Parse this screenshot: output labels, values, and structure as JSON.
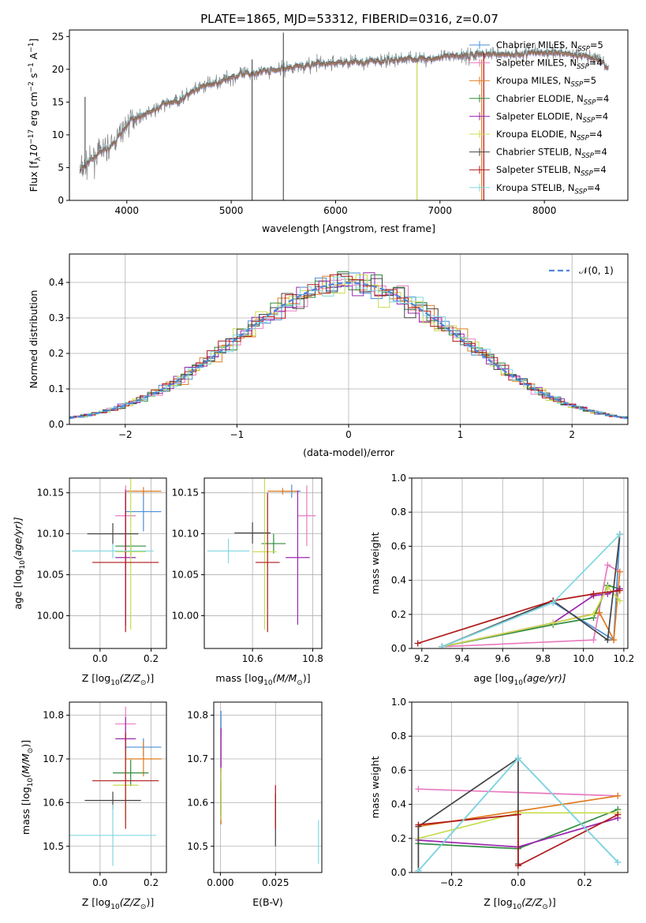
{
  "series_styles": [
    {
      "name": "Chabrier MILES",
      "suffix": "=5",
      "color": "#4a8fd8"
    },
    {
      "name": "Salpeter MILES",
      "suffix": "=4",
      "color": "#e87ac0"
    },
    {
      "name": "Kroupa MILES",
      "suffix": "=5",
      "color": "#e07a1f"
    },
    {
      "name": "Chabrier ELODIE",
      "suffix": "=4",
      "color": "#2e8b3e"
    },
    {
      "name": "Salpeter ELODIE",
      "suffix": "=4",
      "color": "#9c27b0"
    },
    {
      "name": "Kroupa ELODIE",
      "suffix": "=4",
      "color": "#c8dc50"
    },
    {
      "name": "Chabrier STELIB",
      "suffix": "=4",
      "color": "#444444"
    },
    {
      "name": "Salpeter STELIB",
      "suffix": "=4",
      "color": "#b01818"
    },
    {
      "name": "Kroupa STELIB",
      "suffix": "=4",
      "color": "#80d8e0"
    }
  ],
  "chart_data": [
    {
      "type": "line",
      "title": "PLATE=1865, MJD=53312, FIBERID=0316, z=0.07",
      "xlabel": "wavelength [Angstrom, rest frame]",
      "ylabel": "Flux [f",
      "ylabel_sub": "λ",
      "ylabel_rest": "10",
      "ylabel_exp": "−17",
      "ylabel_units": " erg cm",
      "ylabel_units_exp": "−2",
      "ylabel_units2": " s",
      "ylabel_units2_exp": "−1",
      "ylabel_units3": " A",
      "ylabel_units3_exp": "−1",
      "ylabel_end": "]",
      "xlim": [
        3450,
        8800
      ],
      "ylim": [
        0,
        26
      ],
      "xticks": [
        4000,
        5000,
        6000,
        7000,
        8000
      ],
      "yticks": [
        0,
        5,
        10,
        15,
        20,
        25
      ],
      "legend_position": "upper-right",
      "legend_label_prefix": "N",
      "legend_label_sub": "SSP",
      "continuum": [
        [
          3550,
          4.5
        ],
        [
          3650,
          6.0
        ],
        [
          3750,
          7.5
        ],
        [
          3850,
          8.2
        ],
        [
          3950,
          10.5
        ],
        [
          4050,
          12.5
        ],
        [
          4150,
          13.0
        ],
        [
          4250,
          13.6
        ],
        [
          4350,
          14.6
        ],
        [
          4500,
          15.3
        ],
        [
          4700,
          17.2
        ],
        [
          4900,
          18.3
        ],
        [
          5100,
          19.2
        ],
        [
          5300,
          19.7
        ],
        [
          5500,
          20.1
        ],
        [
          5700,
          20.6
        ],
        [
          5900,
          20.9
        ],
        [
          6100,
          21.1
        ],
        [
          6300,
          21.2
        ],
        [
          6500,
          21.3
        ],
        [
          6700,
          21.6
        ],
        [
          6900,
          21.6
        ],
        [
          7100,
          21.9
        ],
        [
          7300,
          22.2
        ],
        [
          7500,
          22.4
        ],
        [
          7700,
          22.3
        ],
        [
          7900,
          22.6
        ],
        [
          8100,
          22.6
        ],
        [
          8300,
          22.3
        ],
        [
          8500,
          21.7
        ],
        [
          8620,
          20.0
        ]
      ],
      "spikes": [
        {
          "x": 5200,
          "y0": 0,
          "y1": 21.5,
          "color": "#555555"
        },
        {
          "x": 5500,
          "y0": 0,
          "y1": 25.6,
          "color": "#555555"
        },
        {
          "x": 6780,
          "y0": 0,
          "y1": 21.0,
          "color": "#c8dc50"
        },
        {
          "x": 7420,
          "y0": 0,
          "y1": 22.5,
          "color": "#b01818"
        },
        {
          "x": 7400,
          "y0": 0,
          "y1": 21.5,
          "color": "#e07a1f"
        },
        {
          "x": 3600,
          "y0": 5,
          "y1": 15.8,
          "color": "#555555"
        }
      ]
    },
    {
      "type": "histogram",
      "xlabel": "(data-model)/error",
      "ylabel": "Normed distribution",
      "xlim": [
        -2.5,
        2.5
      ],
      "ylim": [
        0,
        0.48
      ],
      "xticks": [
        -2,
        -1,
        0,
        1,
        2
      ],
      "yticks": [
        0.0,
        0.1,
        0.2,
        0.3,
        0.4
      ],
      "grid": true,
      "legend_label": "𝒩(0, 1)",
      "legend_position": "top-right",
      "reference_curve": "normal(0,1)",
      "bin_width": 0.1,
      "bin_start": -2.5
    },
    {
      "type": "scatter",
      "xlabel": "Z [log",
      "xlabel_sub": "10",
      "xlabel_rest": "(Z/Z",
      "xlabel_rest_sub": "⊙",
      "xlabel_end": ")]",
      "ylabel": "age  [log",
      "ylabel_sub": "10",
      "ylabel_rest": "(age/yr)]",
      "xlim": [
        -0.12,
        0.26
      ],
      "ylim": [
        9.96,
        10.168
      ],
      "xticks": [
        0.0,
        0.2
      ],
      "yticks": [
        10.0,
        10.05,
        10.1,
        10.15
      ],
      "points": [
        {
          "x": 0.17,
          "xerr": 0.07,
          "y": 10.127,
          "yerr": 0.024
        },
        {
          "x": 0.1,
          "xerr": 0.04,
          "y": 10.122,
          "yerr": 0.037
        },
        {
          "x": 0.17,
          "xerr": 0.07,
          "y": 10.152,
          "yerr": 0.005
        },
        {
          "x": 0.12,
          "xerr": 0.06,
          "y": 10.085,
          "yerr": 0.012
        },
        {
          "x": 0.1,
          "xerr": 0.04,
          "y": 10.071,
          "yerr": 0.083
        },
        {
          "x": 0.12,
          "xerr": 0.06,
          "y": 10.078,
          "yerr": 0.095
        },
        {
          "x": 0.05,
          "xerr": 0.1,
          "y": 10.1,
          "yerr": 0.013
        },
        {
          "x": 0.1,
          "xerr": 0.13,
          "y": 10.065,
          "yerr": 0.085
        },
        {
          "x": 0.05,
          "xerr": 0.16,
          "y": 10.079,
          "yerr": 0.009
        }
      ]
    },
    {
      "type": "scatter",
      "xlabel": "mass [log",
      "xlabel_sub": "10",
      "xlabel_rest": "(M/M",
      "xlabel_rest_sub": "⊙",
      "xlabel_end": ")]",
      "xlim": [
        10.44,
        10.83
      ],
      "ylim": [
        9.96,
        10.168
      ],
      "xticks": [
        10.6,
        10.8
      ],
      "yticks": [
        10.0,
        10.05,
        10.1,
        10.15
      ],
      "points": [
        {
          "x": 10.73,
          "xerr": 0.03,
          "y": 10.152,
          "yerr": 0.008
        },
        {
          "x": 10.78,
          "xerr": 0.03,
          "y": 10.122,
          "yerr": 0.037
        },
        {
          "x": 10.7,
          "xerr": 0.05,
          "y": 10.152,
          "yerr": 0.004
        },
        {
          "x": 10.67,
          "xerr": 0.04,
          "y": 10.088,
          "yerr": 0.012
        },
        {
          "x": 10.75,
          "xerr": 0.04,
          "y": 10.071,
          "yerr": 0.082
        },
        {
          "x": 10.64,
          "xerr": 0.04,
          "y": 10.078,
          "yerr": 0.095
        },
        {
          "x": 10.6,
          "xerr": 0.06,
          "y": 10.101,
          "yerr": 0.013
        },
        {
          "x": 10.65,
          "xerr": 0.04,
          "y": 10.065,
          "yerr": 0.085
        },
        {
          "x": 10.52,
          "xerr": 0.07,
          "y": 10.079,
          "yerr": 0.015
        }
      ]
    },
    {
      "type": "line",
      "xlabel": "age  [log",
      "xlabel_sub": "10",
      "xlabel_rest": "(age/yr)]",
      "ylabel": "mass weight",
      "xlim": [
        9.15,
        10.22
      ],
      "ylim": [
        0.0,
        1.0
      ],
      "xticks": [
        9.2,
        9.4,
        9.6,
        9.8,
        10.0,
        10.2
      ],
      "yticks": [
        0.0,
        0.2,
        0.4,
        0.6,
        0.8,
        1.0
      ],
      "grid": true,
      "series": [
        {
          "x": [
            9.3,
            9.85,
            10.15,
            10.18
          ],
          "y": [
            0.01,
            0.27,
            0.05,
            0.67
          ]
        },
        {
          "x": [
            9.3,
            10.05,
            10.12,
            10.18
          ],
          "y": [
            0.01,
            0.05,
            0.49,
            0.45
          ]
        },
        {
          "x": [
            9.3,
            9.85,
            10.08,
            10.15,
            10.18
          ],
          "y": [
            0.01,
            0.15,
            0.21,
            0.05,
            0.45
          ]
        },
        {
          "x": [
            9.3,
            9.85,
            10.05,
            10.12,
            10.18
          ],
          "y": [
            0.01,
            0.14,
            0.18,
            0.37,
            0.35
          ]
        },
        {
          "x": [
            9.3,
            9.85,
            10.05,
            10.12,
            10.18
          ],
          "y": [
            0.01,
            0.15,
            0.31,
            0.32,
            0.35
          ]
        },
        {
          "x": [
            9.3,
            9.85,
            10.05,
            10.12,
            10.18
          ],
          "y": [
            0.01,
            0.15,
            0.2,
            0.36,
            0.28
          ]
        },
        {
          "x": [
            9.3,
            9.85,
            10.12,
            10.18
          ],
          "y": [
            0.01,
            0.28,
            0.05,
            0.67
          ]
        },
        {
          "x": [
            9.18,
            9.85,
            10.05,
            10.18
          ],
          "y": [
            0.03,
            0.28,
            0.32,
            0.34
          ]
        },
        {
          "x": [
            9.3,
            9.85,
            10.18
          ],
          "y": [
            0.01,
            0.27,
            0.67
          ]
        }
      ]
    },
    {
      "type": "scatter",
      "xlabel": "Z [log",
      "xlabel_sub": "10",
      "xlabel_rest": "(Z/Z",
      "xlabel_rest_sub": "⊙",
      "xlabel_end": ")]",
      "ylabel": "mass [log",
      "ylabel_sub": "10",
      "ylabel_rest": "(M/M",
      "ylabel_rest_sub": "⊙",
      "ylabel_end": ")]",
      "xlim": [
        -0.12,
        0.26
      ],
      "ylim": [
        10.44,
        10.83
      ],
      "xticks": [
        0.0,
        0.2
      ],
      "yticks": [
        10.5,
        10.6,
        10.7,
        10.8
      ],
      "points": [
        {
          "x": 0.17,
          "xerr": 0.07,
          "y": 10.727,
          "yerr": 0.02
        },
        {
          "x": 0.1,
          "xerr": 0.04,
          "y": 10.78,
          "yerr": 0.04
        },
        {
          "x": 0.17,
          "xerr": 0.07,
          "y": 10.7,
          "yerr": 0.04
        },
        {
          "x": 0.12,
          "xerr": 0.07,
          "y": 10.668,
          "yerr": 0.03
        },
        {
          "x": 0.1,
          "xerr": 0.04,
          "y": 10.746,
          "yerr": 0.05
        },
        {
          "x": 0.1,
          "xerr": 0.05,
          "y": 10.64,
          "yerr": 0.08
        },
        {
          "x": 0.05,
          "xerr": 0.11,
          "y": 10.605,
          "yerr": 0.02
        },
        {
          "x": 0.1,
          "xerr": 0.13,
          "y": 10.65,
          "yerr": 0.11
        },
        {
          "x": 0.05,
          "xerr": 0.17,
          "y": 10.525,
          "yerr": 0.07
        }
      ]
    },
    {
      "type": "scatter",
      "xlabel": "E(B-V)",
      "xlim": [
        -0.003,
        0.046
      ],
      "ylim": [
        10.44,
        10.83
      ],
      "xticks": [
        0.0,
        0.025
      ],
      "yticks": [
        10.5,
        10.6,
        10.7,
        10.8
      ],
      "points": [
        {
          "x": 0.0003,
          "xerr": 0,
          "y": 10.78,
          "yerr": 0.03
        },
        {
          "x": 0.0003,
          "xerr": 0,
          "y": 10.71,
          "yerr": 0.06
        },
        {
          "x": 0.0003,
          "xerr": 0,
          "y": 10.6,
          "yerr": 0.05
        },
        {
          "x": 0.0003,
          "xerr": 0,
          "y": 10.61,
          "yerr": 0.04
        },
        {
          "x": 0.0003,
          "xerr": 0,
          "y": 10.72,
          "yerr": 0.05
        },
        {
          "x": 0.0003,
          "xerr": 0,
          "y": 10.62,
          "yerr": 0.06
        },
        {
          "x": 0.025,
          "xerr": 0,
          "y": 10.56,
          "yerr": 0.06
        },
        {
          "x": 0.025,
          "xerr": 0,
          "y": 10.59,
          "yerr": 0.05
        },
        {
          "x": 0.0445,
          "xerr": 0,
          "y": 10.51,
          "yerr": 0.05
        }
      ]
    },
    {
      "type": "line",
      "xlabel": "Z [log",
      "xlabel_sub": "10",
      "xlabel_rest": "(Z/Z",
      "xlabel_rest_sub": "⊙",
      "xlabel_end": ")]",
      "ylabel": "mass weight",
      "xlim": [
        -0.32,
        0.33
      ],
      "ylim": [
        0.0,
        1.0
      ],
      "xticks": [
        -0.2,
        0.0,
        0.2
      ],
      "yticks": [
        0.0,
        0.2,
        0.4,
        0.6,
        0.8,
        1.0
      ],
      "grid": true,
      "series": [
        {
          "x": [
            -0.3,
            0.0,
            0.3
          ],
          "y": [
            0.01,
            0.67,
            0.06
          ]
        },
        {
          "x": [
            -0.3,
            0.3
          ],
          "y": [
            0.49,
            0.45
          ]
        },
        {
          "x": [
            -0.3,
            0.0,
            0.3
          ],
          "y": [
            0.27,
            0.36,
            0.45
          ]
        },
        {
          "x": [
            -0.3,
            0.0,
            0.3
          ],
          "y": [
            0.17,
            0.14,
            0.37
          ]
        },
        {
          "x": [
            -0.3,
            0.0,
            0.3
          ],
          "y": [
            0.19,
            0.15,
            0.32
          ]
        },
        {
          "x": [
            -0.3,
            0.0,
            0.3
          ],
          "y": [
            0.2,
            0.35,
            0.35
          ]
        },
        {
          "x": [
            -0.3,
            -0.3,
            0.0,
            0.0
          ],
          "y": [
            0.01,
            0.27,
            0.67,
            0.05
          ]
        },
        {
          "x": [
            -0.3,
            0.0,
            0.0,
            0.3
          ],
          "y": [
            0.28,
            0.34,
            0.04,
            0.34
          ]
        },
        {
          "x": [
            -0.3,
            0.0,
            0.3
          ],
          "y": [
            0.01,
            0.67,
            0.06
          ]
        }
      ]
    }
  ]
}
